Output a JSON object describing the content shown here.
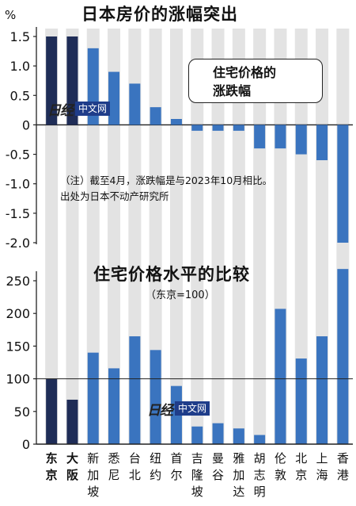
{
  "top_title": "日本房价的涨幅突出",
  "unit_label": "%",
  "legend_lines": [
    "住宅价格的",
    "涨跌幅"
  ],
  "note_lines": [
    "（注）截至4月，涨跌幅是与2023年10月相比。",
    "出处为日本不动产研究所"
  ],
  "bottom_title": "住宅价格水平的比较",
  "bottom_subtitle": "（东京=100）",
  "watermark": {
    "logo": "日经",
    "tag": "中文网"
  },
  "colors": {
    "japan": "#1f2d57",
    "other": "#3a74bf",
    "stripe": "#e3e3e3",
    "axis": "#222222"
  },
  "chart_data": [
    {
      "type": "bar",
      "title": "日本房价的涨幅突出",
      "subtitle": "住宅价格的涨跌幅",
      "ylabel": "%",
      "ylim": [
        -2.0,
        1.5
      ],
      "yticks": [
        "1.5",
        "1.0",
        "0.5",
        "0",
        "-0.5",
        "-1.0",
        "-1.5",
        "-2.0"
      ],
      "categories": [
        "东京",
        "大阪",
        "新加坡",
        "悉尼",
        "台北",
        "纽约",
        "首尔",
        "吉隆坡",
        "曼谷",
        "雅加达",
        "胡志明",
        "伦敦",
        "北京",
        "上海",
        "香港"
      ],
      "values": [
        1.5,
        1.5,
        1.3,
        0.9,
        0.7,
        0.3,
        0.1,
        -0.1,
        -0.1,
        -0.1,
        -0.4,
        -0.4,
        -0.5,
        -0.6,
        -2.0
      ]
    },
    {
      "type": "bar",
      "title": "住宅价格水平的比较",
      "subtitle": "（东京=100）",
      "ylim": [
        0,
        250
      ],
      "yticks": [
        "250",
        "200",
        "150",
        "100",
        "50",
        "0"
      ],
      "categories": [
        "东京",
        "大阪",
        "新加坡",
        "悉尼",
        "台北",
        "纽约",
        "首尔",
        "吉隆坡",
        "曼谷",
        "雅加达",
        "胡志明",
        "伦敦",
        "北京",
        "上海",
        "香港"
      ],
      "category_lines": [
        [
          "东",
          "京"
        ],
        [
          "大",
          "阪"
        ],
        [
          "新",
          "加",
          "坡"
        ],
        [
          "悉",
          "尼"
        ],
        [
          "台",
          "北"
        ],
        [
          "纽",
          "约"
        ],
        [
          "首",
          "尔"
        ],
        [
          "吉",
          "隆",
          "坡"
        ],
        [
          "曼",
          "谷"
        ],
        [
          "雅",
          "加",
          "达"
        ],
        [
          "胡",
          "志",
          "明"
        ],
        [
          "伦",
          "敦"
        ],
        [
          "北",
          "京"
        ],
        [
          "上",
          "海"
        ],
        [
          "香",
          "港"
        ]
      ],
      "values": [
        100,
        68,
        140,
        116,
        165,
        144,
        89,
        27,
        32,
        24,
        14,
        207,
        131,
        165,
        268
      ]
    }
  ]
}
